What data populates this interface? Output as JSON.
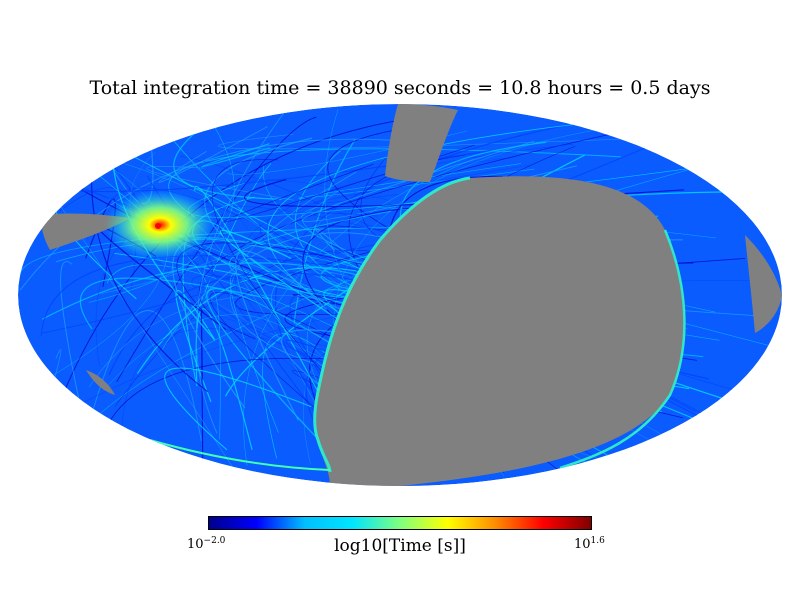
{
  "title": "Total integration time = 38890 seconds = 10.8 hours = 0.5 days",
  "colorbar": {
    "label": "log10[Time [s]]",
    "min_base": "10",
    "min_exp": "−2.0",
    "max_base": "10",
    "max_exp": "1.6",
    "colormap": "jet",
    "min_log": -2.0,
    "max_log": 1.6
  },
  "map": {
    "projection": "mollweide",
    "unobserved_color": "#808080",
    "colors": {
      "dark_blue": "#00008b",
      "blue": "#0000ff",
      "light_blue": "#1e90ff",
      "cyan": "#00e5ff",
      "green": "#7fff7f",
      "yellow": "#ffff00",
      "red": "#ff0000",
      "dark_red": "#800000"
    }
  }
}
